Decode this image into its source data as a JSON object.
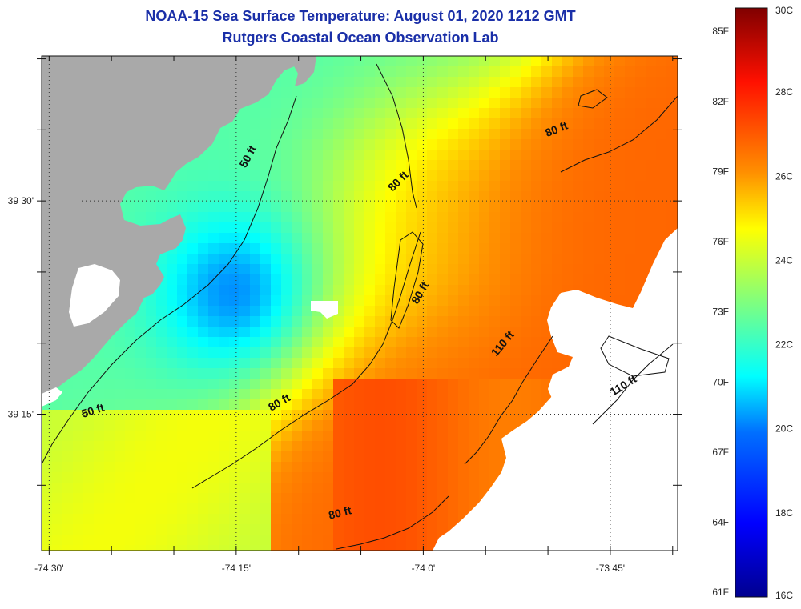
{
  "header": {
    "title": "NOAA-15 Sea Surface Temperature:  August 01, 2020 1212 GMT",
    "subtitle": "Rutgers Coastal Ocean Observation Lab"
  },
  "chart_data": {
    "type": "heatmap",
    "title": "NOAA-15 Sea Surface Temperature:  August 01, 2020 1212 GMT",
    "subtitle": "Rutgers Coastal Ocean Observation Lab",
    "x_axis": {
      "ticks": [
        {
          "label": "-74 30'",
          "value": -74.5
        },
        {
          "label": "-74 15'",
          "value": -74.25
        },
        {
          "label": "-74 0'",
          "value": -74.0
        },
        {
          "label": "-73 45'",
          "value": -73.75
        }
      ],
      "range": [
        -74.51,
        -73.66
      ]
    },
    "y_axis": {
      "ticks": [
        {
          "label": "39 30'",
          "value": 39.5
        },
        {
          "label": "39 15'",
          "value": 39.25
        }
      ],
      "range": [
        39.09,
        39.67
      ]
    },
    "grid": true,
    "colorbar": {
      "range_c": [
        16,
        30
      ],
      "celsius_labels": [
        "30C",
        "28C",
        "26C",
        "24C",
        "22C",
        "20C",
        "18C",
        "16C"
      ],
      "celsius_values": [
        30,
        28,
        26,
        24,
        22,
        20,
        18,
        16
      ],
      "fahrenheit_labels": [
        "85F",
        "82F",
        "79F",
        "76F",
        "73F",
        "70F",
        "67F",
        "64F",
        "61F"
      ],
      "fahrenheit_values": [
        85,
        82,
        79,
        76,
        73,
        70,
        67,
        64,
        61
      ]
    },
    "contour_labels": [
      {
        "text": "50 ft",
        "lon": -74.23,
        "lat": 39.55
      },
      {
        "text": "80 ft",
        "lon": -74.03,
        "lat": 39.52
      },
      {
        "text": "80 ft",
        "lon": -73.82,
        "lat": 39.58
      },
      {
        "text": "80 ft",
        "lon": -74.0,
        "lat": 39.39
      },
      {
        "text": "110 ft",
        "lon": -73.89,
        "lat": 39.33
      },
      {
        "text": "110 ft",
        "lon": -73.73,
        "lat": 39.28
      },
      {
        "text": "80 ft",
        "lon": -74.19,
        "lat": 39.26
      },
      {
        "text": "50 ft",
        "lon": -74.44,
        "lat": 39.25
      },
      {
        "text": "80 ft",
        "lon": -74.11,
        "lat": 39.13
      }
    ],
    "land_color": "#a9a9a9",
    "no_data_color": "#ffffff"
  }
}
